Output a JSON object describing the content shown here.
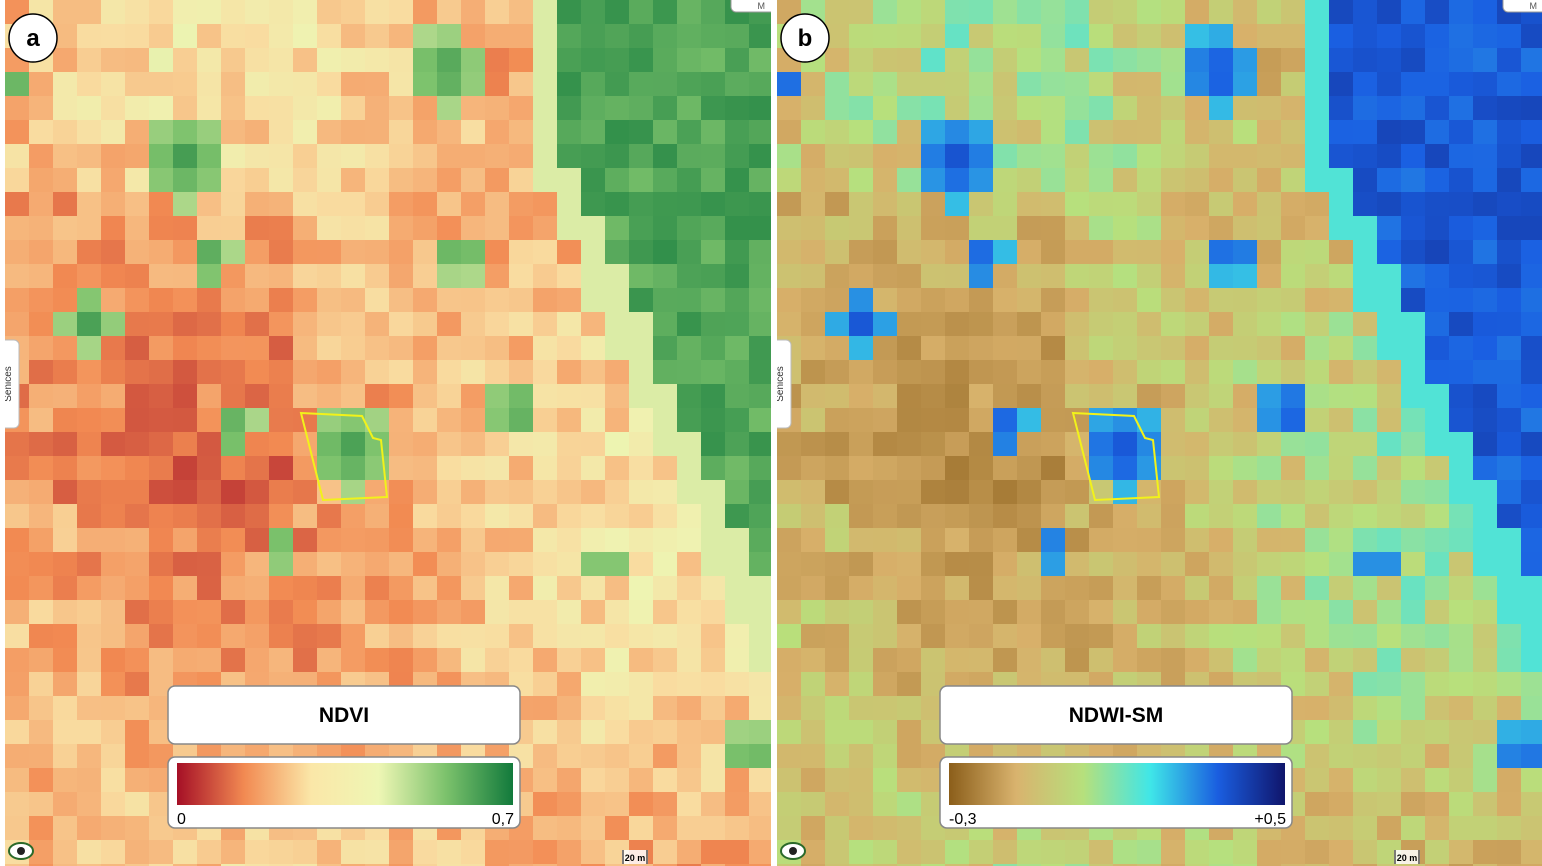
{
  "panels": [
    {
      "label": "a",
      "legend": {
        "title": "NDVI",
        "min": "0",
        "max": "0,7"
      },
      "side_tab": "Senices",
      "scale": "20 m",
      "corner": "M"
    },
    {
      "label": "b",
      "legend": {
        "title": "NDWI-SM",
        "min": "-0,3",
        "max": "+0,5"
      },
      "side_tab": "Senices",
      "scale": "20 m",
      "corner": "M"
    }
  ]
}
